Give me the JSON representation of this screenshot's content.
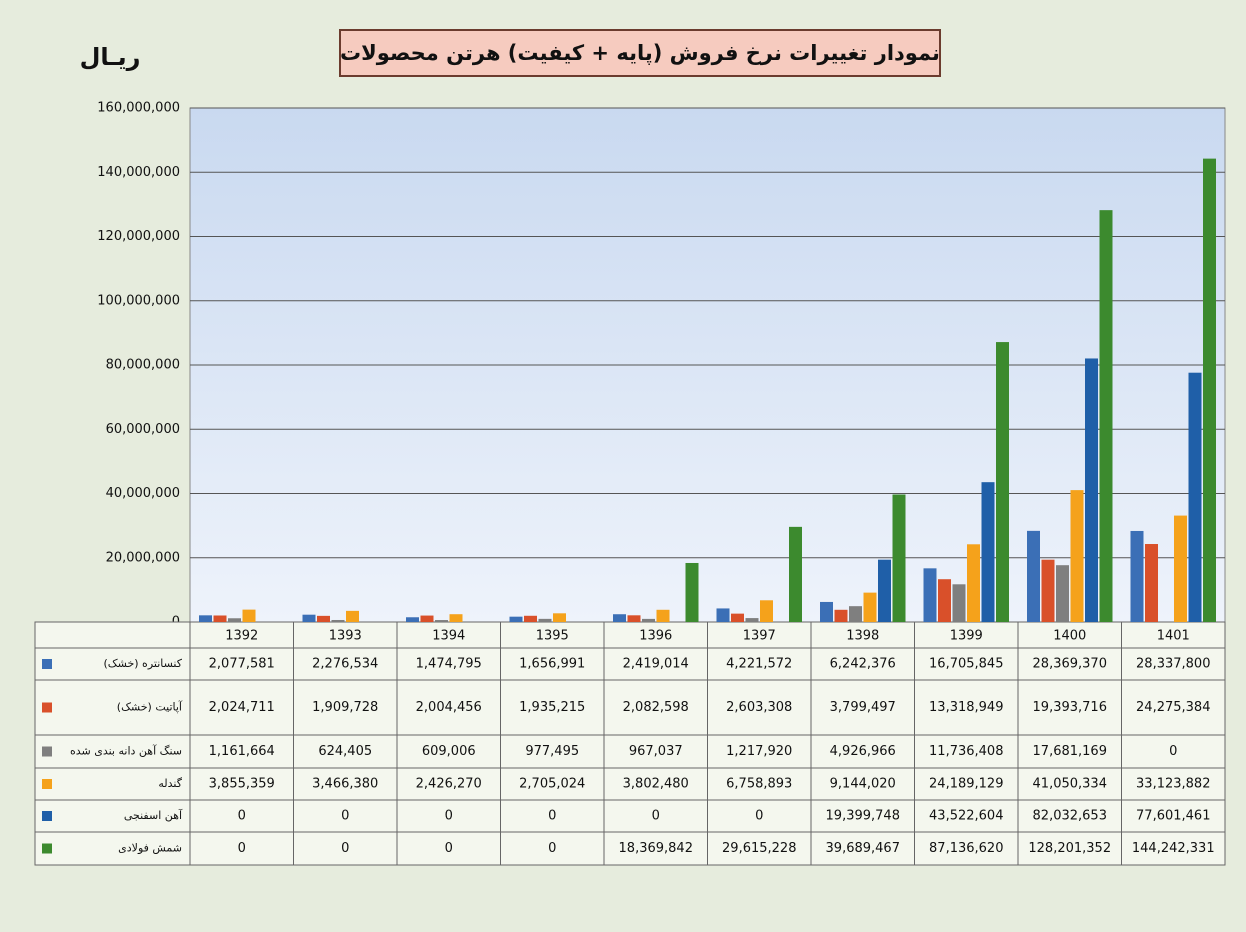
{
  "chart_data": {
    "type": "bar",
    "title": "نمودار تغییرات نرخ فروش (پایه + کیفیت) هرتن محصولات",
    "y_label": "ریـال",
    "categories": [
      "1392",
      "1393",
      "1394",
      "1395",
      "1396",
      "1397",
      "1398",
      "1399",
      "1400",
      "1401"
    ],
    "ylim": [
      0,
      160000000
    ],
    "yticks": [
      0,
      {
        "value": 20000000,
        "label": "20,000,000"
      },
      {
        "value": 40000000,
        "label": "40,000,000"
      },
      {
        "value": 60000000,
        "label": "60,000,000"
      },
      {
        "value": 80000000,
        "label": "80,000,000"
      },
      {
        "value": 100000000,
        "label": "100,000,000"
      },
      {
        "value": 120000000,
        "label": "120,000,000"
      },
      {
        "value": 140000000,
        "label": "140,000,000"
      },
      {
        "value": 160000000,
        "label": "160,000,000"
      }
    ],
    "grid": true,
    "series": [
      {
        "name": "کنسانتره (خشک)",
        "color": "#3b6fb6",
        "values": [
          2077581,
          2276534,
          1474795,
          1656991,
          2419014,
          4221572,
          6242376,
          16705845,
          28369370,
          28337800
        ],
        "value_labels": [
          "2,077,581",
          "2,276,534",
          "1,474,795",
          "1,656,991",
          "2,419,014",
          "4,221,572",
          "6,242,376",
          "16,705,845",
          "28,369,370",
          "28,337,800"
        ]
      },
      {
        "name": "آپاتیت (خشک)",
        "color": "#d9502a",
        "values": [
          2024711,
          1909728,
          2004456,
          1935215,
          2082598,
          2603308,
          3799497,
          13318949,
          19393716,
          24275384
        ],
        "value_labels": [
          "2,024,711",
          "1,909,728",
          "2,004,456",
          "1,935,215",
          "2,082,598",
          "2,603,308",
          "3,799,497",
          "13,318,949",
          "19,393,716",
          "24,275,384"
        ]
      },
      {
        "name": "سنگ آهن دانه بندی شده",
        "color": "#7f7f7f",
        "values": [
          1161664,
          624405,
          609006,
          977495,
          967037,
          1217920,
          4926966,
          11736408,
          17681169,
          0
        ],
        "value_labels": [
          "1,161,664",
          "624,405",
          "609,006",
          "977,495",
          "967,037",
          "1,217,920",
          "4,926,966",
          "11,736,408",
          "17,681,169",
          "0"
        ]
      },
      {
        "name": "گندله",
        "color": "#f5a21b",
        "values": [
          3855359,
          3466380,
          2426270,
          2705024,
          3802480,
          6758893,
          9144020,
          24189129,
          41050334,
          33123882
        ],
        "value_labels": [
          "3,855,359",
          "3,466,380",
          "2,426,270",
          "2,705,024",
          "3,802,480",
          "6,758,893",
          "9,144,020",
          "24,189,129",
          "41,050,334",
          "33,123,882"
        ]
      },
      {
        "name": "آهن اسفنجی",
        "color": "#1f5fa8",
        "values": [
          0,
          0,
          0,
          0,
          0,
          0,
          19399748,
          43522604,
          82032653,
          77601461
        ],
        "value_labels": [
          "0",
          "0",
          "0",
          "0",
          "0",
          "0",
          "19,399,748",
          "43,522,604",
          "82,032,653",
          "77,601,461"
        ]
      },
      {
        "name": "شمش فولادی",
        "color": "#3c8a2e",
        "values": [
          0,
          0,
          0,
          0,
          18369842,
          29615228,
          39689467,
          87136620,
          128201352,
          144242331
        ],
        "value_labels": [
          "0",
          "0",
          "0",
          "0",
          "18,369,842",
          "29,615,228",
          "39,689,467",
          "87,136,620",
          "128,201,352",
          "144,242,331"
        ]
      }
    ]
  }
}
